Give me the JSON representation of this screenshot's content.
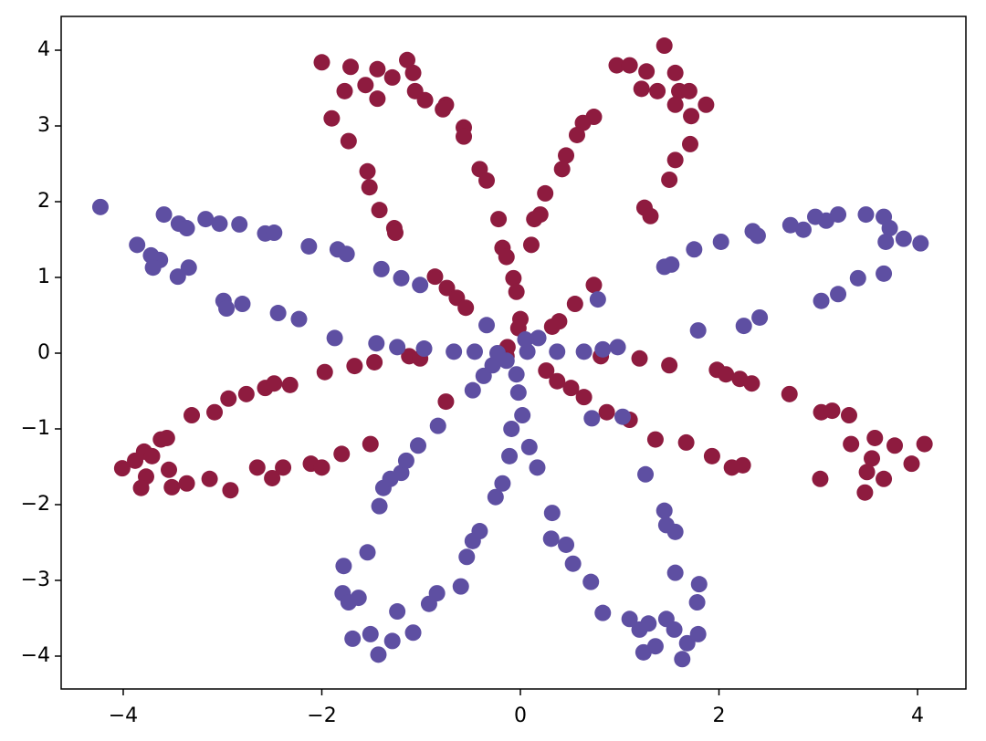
{
  "chart_data": {
    "type": "scatter",
    "xlim": [
      -4.625,
      4.487
    ],
    "ylim": [
      -4.434,
      4.446
    ],
    "xticks": [
      {
        "value": -4,
        "label": "−4"
      },
      {
        "value": -2,
        "label": "−2"
      },
      0,
      2,
      4
    ],
    "yticks": [
      {
        "value": -4,
        "label": "−4"
      },
      {
        "value": -3,
        "label": "−3"
      },
      {
        "value": -2,
        "label": "−2"
      },
      {
        "value": -1,
        "label": "−1"
      },
      0,
      1,
      2,
      3,
      4
    ],
    "series": [
      {
        "color": "#8e1b3f",
        "x": [
          -2.0,
          -1.71,
          -1.14,
          -1.44,
          -1.29,
          -1.77,
          -1.56,
          -1.08,
          -1.06,
          -0.96,
          -0.75,
          -0.78,
          -0.57,
          -0.57,
          -1.9,
          -1.73,
          -1.54,
          -1.52,
          -1.42,
          -1.27,
          -1.26,
          -0.41,
          -0.34,
          -0.22,
          -0.18,
          -0.14,
          -1.44,
          -0.86,
          -0.74,
          -0.64,
          -0.55,
          -0.07,
          -0.04,
          0,
          -0.02,
          1.45,
          0.97,
          1.1,
          1.27,
          1.56,
          1.22,
          1.6,
          1.7,
          1.38,
          1.56,
          1.87,
          1.72,
          0.74,
          0.63,
          0.57,
          0.46,
          0.42,
          0.25,
          0.2,
          0.14,
          0.11,
          1.71,
          1.56,
          1.5,
          1.25,
          1.31,
          0.74,
          0.55,
          0.39,
          0.32,
          -4.01,
          -3.88,
          -3.79,
          -3.71,
          -3.62,
          -3.56,
          -3.77,
          -3.82,
          -3.54,
          -3.51,
          -3.36,
          -3.13,
          -2.92,
          -3.31,
          -3.08,
          -2.94,
          -2.76,
          -2.57,
          -2.48,
          -2.32,
          -2.65,
          -2.5,
          -2.39,
          -2.11,
          -2.0,
          -1.8,
          -1.51,
          -1.97,
          -1.67,
          -1.47,
          -1.12,
          -1.01,
          -0.75,
          -0.14,
          -0.13,
          1.2,
          1.5,
          1.98,
          2.07,
          2.21,
          2.33,
          2.71,
          3.03,
          3.14,
          3.31,
          3.33,
          3.57,
          3.54,
          3.77,
          4.07,
          3.94,
          3.49,
          3.66,
          3.47,
          3.02,
          2.24,
          2.13,
          1.93,
          1.67,
          1.36,
          1.1,
          0.87,
          0.64,
          0.51,
          0.37,
          0.26,
          0.81
        ],
        "y": [
          3.84,
          3.78,
          3.87,
          3.75,
          3.64,
          3.46,
          3.54,
          3.7,
          3.46,
          3.34,
          3.28,
          3.22,
          2.98,
          2.86,
          3.1,
          2.8,
          2.4,
          2.19,
          1.89,
          1.65,
          1.59,
          2.43,
          2.28,
          1.77,
          1.39,
          1.27,
          3.36,
          1.01,
          0.86,
          0.73,
          0.6,
          0.99,
          0.81,
          0.45,
          0.33,
          4.06,
          3.8,
          3.8,
          3.72,
          3.7,
          3.49,
          3.46,
          3.46,
          3.46,
          3.28,
          3.28,
          3.13,
          3.12,
          3.04,
          2.88,
          2.61,
          2.43,
          2.11,
          1.83,
          1.77,
          1.43,
          2.76,
          2.55,
          2.29,
          1.92,
          1.81,
          0.9,
          0.65,
          0.42,
          0.35,
          -1.52,
          -1.42,
          -1.3,
          -1.36,
          -1.14,
          -1.12,
          -1.63,
          -1.78,
          -1.54,
          -1.77,
          -1.72,
          -1.66,
          -1.81,
          -0.82,
          -0.78,
          -0.6,
          -0.54,
          -0.46,
          -0.4,
          -0.42,
          -1.51,
          -1.65,
          -1.51,
          -1.46,
          -1.51,
          -1.33,
          -1.2,
          -0.25,
          -0.17,
          -0.12,
          -0.04,
          -0.07,
          -0.64,
          -0.04,
          0.08,
          -0.07,
          -0.16,
          -0.22,
          -0.28,
          -0.34,
          -0.4,
          -0.54,
          -0.78,
          -0.76,
          -0.82,
          -1.2,
          -1.12,
          -1.39,
          -1.22,
          -1.2,
          -1.46,
          -1.57,
          -1.66,
          -1.84,
          -1.66,
          -1.48,
          -1.51,
          -1.36,
          -1.18,
          -1.14,
          -0.88,
          -0.78,
          -0.58,
          -0.46,
          -0.37,
          -0.23,
          -0.04
        ]
      },
      {
        "color": "#5e4fa2",
        "x": [
          -4.23,
          -3.86,
          -3.59,
          -3.44,
          -3.36,
          -3.17,
          -3.03,
          -2.83,
          -2.57,
          -2.48,
          -2.13,
          -1.84,
          -1.75,
          -1.4,
          -1.2,
          -1.01,
          -3.72,
          -3.63,
          -3.7,
          -3.45,
          -3.34,
          -2.99,
          -2.96,
          -2.8,
          -2.44,
          -2.23,
          -1.87,
          -1.45,
          -1.24,
          -0.97,
          -0.67,
          -0.46,
          -0.34,
          -0.23,
          2.72,
          2.85,
          2.97,
          3.08,
          3.2,
          3.48,
          3.66,
          3.72,
          3.68,
          3.86,
          4.03,
          3.4,
          3.66,
          3.2,
          3.03,
          2.34,
          2.39,
          2.02,
          1.75,
          1.52,
          1.45,
          2.41,
          2.25,
          1.79,
          0.78,
          0.98,
          0.83,
          0.64,
          0.37,
          0.18,
          0.07,
          -1.79,
          -1.73,
          -1.63,
          -1.69,
          -1.51,
          -1.43,
          -1.29,
          -1.24,
          -1.08,
          -0.92,
          -0.84,
          -0.6,
          -0.54,
          -0.48,
          -0.41,
          -0.25,
          -0.18,
          -1.78,
          -1.54,
          -1.42,
          -1.38,
          -1.31,
          -1.2,
          -1.15,
          -1.03,
          -0.83,
          -0.48,
          -0.37,
          -0.28,
          -0.14,
          0.32,
          0.31,
          0.46,
          0.53,
          0.71,
          0.83,
          1.1,
          1.2,
          1.29,
          1.24,
          1.36,
          1.47,
          1.55,
          1.63,
          1.68,
          1.79,
          1.78,
          1.8,
          1.56,
          1.45,
          1.47,
          1.56,
          1.26,
          1.03,
          0.72,
          0.17,
          0.09,
          -0.11,
          -0.09,
          0.02,
          -0.02,
          -0.04,
          0.05
        ],
        "y": [
          1.93,
          1.43,
          1.83,
          1.71,
          1.65,
          1.77,
          1.71,
          1.7,
          1.58,
          1.59,
          1.41,
          1.37,
          1.31,
          1.11,
          0.99,
          0.9,
          1.29,
          1.23,
          1.13,
          1.01,
          1.13,
          0.69,
          0.59,
          0.65,
          0.53,
          0.45,
          0.2,
          0.13,
          0.08,
          0.06,
          0.02,
          0.02,
          0.37,
          0,
          1.69,
          1.63,
          1.8,
          1.75,
          1.83,
          1.83,
          1.8,
          1.65,
          1.47,
          1.51,
          1.45,
          0.99,
          1.05,
          0.78,
          0.69,
          1.61,
          1.55,
          1.47,
          1.37,
          1.17,
          1.14,
          0.47,
          0.36,
          0.3,
          0.71,
          0.08,
          0.05,
          0.02,
          0.02,
          0.2,
          0.02,
          -3.17,
          -3.29,
          -3.23,
          -3.77,
          -3.71,
          -3.98,
          -3.8,
          -3.41,
          -3.69,
          -3.31,
          -3.17,
          -3.08,
          -2.69,
          -2.48,
          -2.35,
          -1.9,
          -1.72,
          -2.81,
          -2.63,
          -2.02,
          -1.78,
          -1.66,
          -1.58,
          -1.42,
          -1.22,
          -0.96,
          -0.49,
          -0.3,
          -0.16,
          -0.1,
          -2.11,
          -2.45,
          -2.53,
          -2.78,
          -3.02,
          -3.43,
          -3.51,
          -3.65,
          -3.57,
          -3.95,
          -3.87,
          -3.51,
          -3.65,
          -4.04,
          -3.83,
          -3.71,
          -3.29,
          -3.05,
          -2.9,
          -2.08,
          -2.27,
          -2.36,
          -1.6,
          -0.84,
          -0.86,
          -1.51,
          -1.24,
          -1.36,
          -1.0,
          -0.82,
          -0.52,
          -0.28,
          0.18
        ]
      }
    ]
  }
}
